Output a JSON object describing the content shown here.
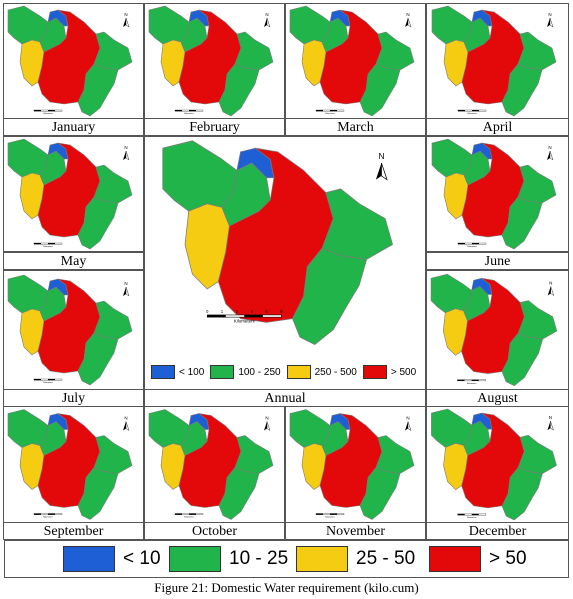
{
  "months": {
    "jan": "January",
    "feb": "February",
    "mar": "March",
    "apr": "April",
    "may": "May",
    "jun": "June",
    "jul": "July",
    "aug": "August",
    "sep": "September",
    "oct": "October",
    "nov": "November",
    "dec": "December",
    "annual": "Annual"
  },
  "north_label": "N",
  "scale_label": "Kilometers",
  "scale_ticks": [
    "0",
    "1",
    "2",
    "4",
    "6",
    "8"
  ],
  "colors": {
    "blue": "#1f5fd6",
    "green": "#21b44a",
    "yellow": "#f5cc12",
    "red": "#e3090b"
  },
  "annual_legend": [
    {
      "label": "< 100"
    },
    {
      "label": "100 - 250"
    },
    {
      "label": "250 - 500"
    },
    {
      "label": "> 500"
    }
  ],
  "monthly_legend": [
    {
      "label": "< 10"
    },
    {
      "label": "10 - 25"
    },
    {
      "label": "25 - 50"
    },
    {
      "label": "> 50"
    }
  ],
  "caption": "Figure 21: Domestic Water requirement (kilo.cum)"
}
